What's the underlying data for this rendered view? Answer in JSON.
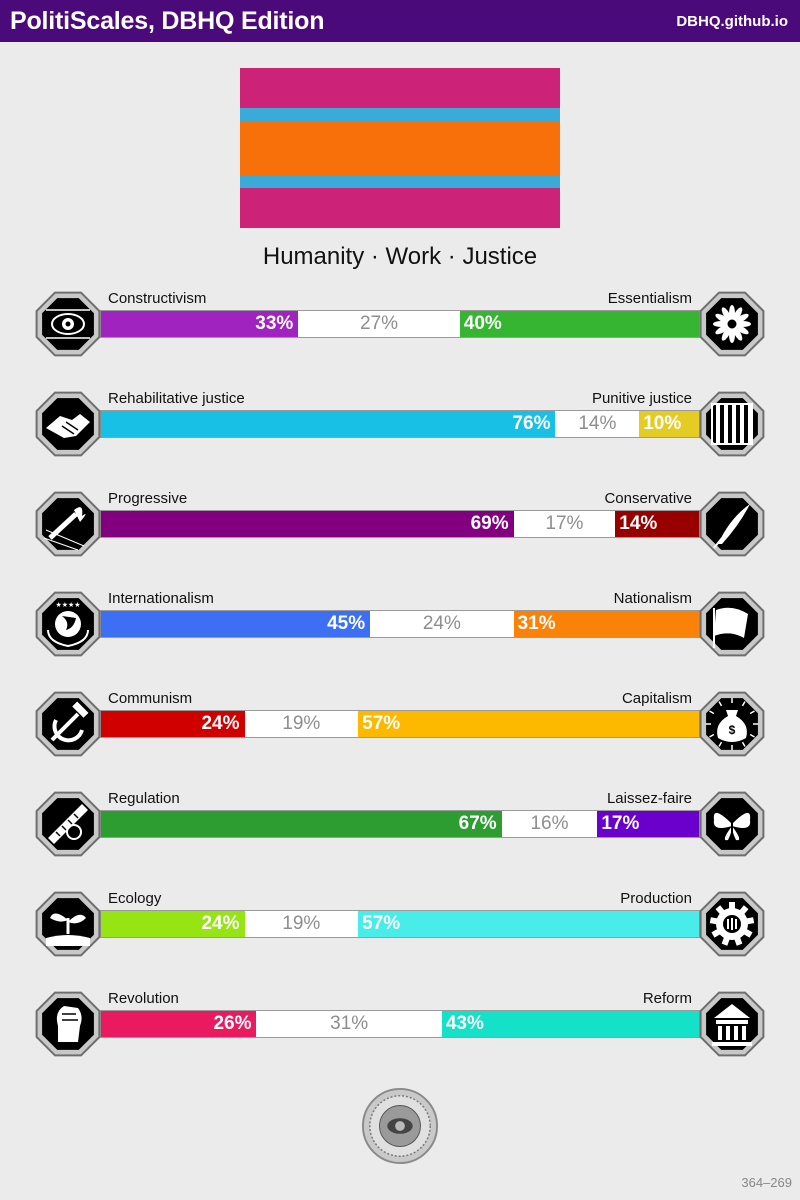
{
  "header": {
    "title": "PolitiScales, DBHQ Edition",
    "site": "DBHQ.github.io"
  },
  "flag": {
    "stripes": [
      {
        "color": "#cc2277",
        "weight": 40
      },
      {
        "color": "#3aaad8",
        "weight": 13
      },
      {
        "color": "#f8700a",
        "weight": 54
      },
      {
        "color": "#3aaad8",
        "weight": 13
      },
      {
        "color": "#cc2277",
        "weight": 40
      }
    ]
  },
  "slogan": "Humanity · Work · Justice",
  "axes": [
    {
      "left_label": "Constructivism",
      "right_label": "Essentialism",
      "left_value": 33,
      "mid_value": 27,
      "right_value": 40,
      "left_text": "33%",
      "mid_text": "27%",
      "right_text": "40%",
      "left_color": "#a023c0",
      "right_color": "#35b531",
      "left_icon": "eye-icon",
      "right_icon": "flower-icon"
    },
    {
      "left_label": "Rehabilitative justice",
      "right_label": "Punitive justice",
      "left_value": 76,
      "mid_value": 14,
      "right_value": 10,
      "left_text": "76%",
      "mid_text": "14%",
      "right_text": "10%",
      "left_color": "#18c0e6",
      "right_color": "#e5cc25",
      "left_icon": "handshake-icon",
      "right_icon": "prison-bars-icon"
    },
    {
      "left_label": "Progressive",
      "right_label": "Conservative",
      "left_value": 69,
      "mid_value": 17,
      "right_value": 14,
      "left_text": "69%",
      "mid_text": "17%",
      "right_text": "14%",
      "left_color": "#820080",
      "right_color": "#980000",
      "left_icon": "torch-icon",
      "right_icon": "quill-icon"
    },
    {
      "left_label": "Internationalism",
      "right_label": "Nationalism",
      "left_value": 45,
      "mid_value": 24,
      "right_value": 31,
      "left_text": "45%",
      "mid_text": "24%",
      "right_text": "31%",
      "left_color": "#3d6ff5",
      "right_color": "#fb8208",
      "left_icon": "globe-icon",
      "right_icon": "flag-icon"
    },
    {
      "left_label": "Communism",
      "right_label": "Capitalism",
      "left_value": 24,
      "mid_value": 19,
      "right_value": 57,
      "left_text": "24%",
      "mid_text": "19%",
      "right_text": "57%",
      "left_color": "#d00000",
      "right_color": "#fdb800",
      "left_icon": "hammer-sickle-icon",
      "right_icon": "money-bag-icon"
    },
    {
      "left_label": "Regulation",
      "right_label": "Laissez-faire",
      "left_value": 67,
      "mid_value": 16,
      "right_value": 17,
      "left_text": "67%",
      "mid_text": "16%",
      "right_text": "17%",
      "left_color": "#2d9c31",
      "right_color": "#6b00cc",
      "left_icon": "ruler-icon",
      "right_icon": "butterfly-icon"
    },
    {
      "left_label": "Ecology",
      "right_label": "Production",
      "left_value": 24,
      "mid_value": 19,
      "right_value": 57,
      "left_text": "24%",
      "mid_text": "19%",
      "right_text": "57%",
      "left_color": "#96e413",
      "right_color": "#48ece9",
      "left_icon": "sprout-icon",
      "right_icon": "gear-icon"
    },
    {
      "left_label": "Revolution",
      "right_label": "Reform",
      "left_value": 26,
      "mid_value": 31,
      "right_value": 43,
      "left_text": "26%",
      "mid_text": "31%",
      "right_text": "43%",
      "left_color": "#ea1a60",
      "right_color": "#14e1c8",
      "left_icon": "fist-icon",
      "right_icon": "building-icon"
    }
  ],
  "footer": {
    "coords": "364–269",
    "seal_icon": "seal-icon"
  }
}
